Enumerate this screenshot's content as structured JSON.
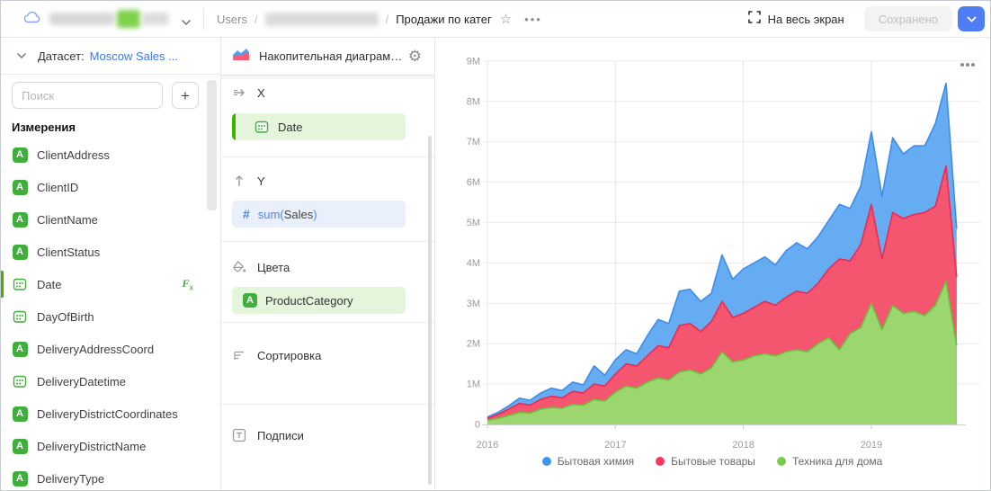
{
  "topbar": {
    "breadcrumb": {
      "root": "Users",
      "separator": "/",
      "current": "Продажи по катег"
    },
    "fullscreen_label": "На весь экран",
    "save_button_label": "Сохранено"
  },
  "sidebar": {
    "dataset_label": "Датасет:",
    "dataset_name": "Moscow Sales ...",
    "search_placeholder": "Поиск",
    "add_button_label": "+",
    "fields_section_title": "Измерения",
    "fields": [
      {
        "name": "ClientAddress",
        "type": "string"
      },
      {
        "name": "ClientID",
        "type": "string"
      },
      {
        "name": "ClientName",
        "type": "string"
      },
      {
        "name": "ClientStatus",
        "type": "string"
      },
      {
        "name": "Date",
        "type": "date",
        "formula": true,
        "active": true
      },
      {
        "name": "DayOfBirth",
        "type": "date"
      },
      {
        "name": "DeliveryAddressCoord",
        "type": "string"
      },
      {
        "name": "DeliveryDatetime",
        "type": "date"
      },
      {
        "name": "DeliveryDistrictCoordinates",
        "type": "string"
      },
      {
        "name": "DeliveryDistrictName",
        "type": "string"
      },
      {
        "name": "DeliveryType",
        "type": "string"
      }
    ]
  },
  "chart_panel_ui": {
    "chart_type_label": "Накопительная диаграм…",
    "sections": {
      "x_label": "X",
      "y_label": "Y",
      "colors_label": "Цвета",
      "sort_label": "Сортировка",
      "labels_label": "Подписи"
    },
    "x_field": "Date",
    "y_field": {
      "prefix": "sum(",
      "field": "Sales",
      "suffix": ")"
    },
    "color_field": "ProductCategory"
  },
  "chart_data": {
    "type": "area",
    "stacked": true,
    "x_start": "2016-01",
    "x_step": "1 month",
    "x_tick_labels": [
      "2016",
      "2017",
      "2018",
      "2019"
    ],
    "x_tick_month_indices": [
      0,
      12,
      24,
      36
    ],
    "ylim_millions": [
      0,
      9
    ],
    "y_tick_labels": [
      "0",
      "1M",
      "2M",
      "3M",
      "4M",
      "5M",
      "6M",
      "7M",
      "8M",
      "9M"
    ],
    "values_unit": "millions",
    "legend_position": "bottom",
    "stack_bottom_to_top": [
      "Техника для дома",
      "Бытовые товары",
      "Бытовая химия"
    ],
    "series": [
      {
        "name": "Бытовая химия",
        "fill": "#65ACF2",
        "line": "#3C8DE9",
        "dot": "#3E96F0",
        "values": [
          0.03,
          0.05,
          0.08,
          0.13,
          0.12,
          0.16,
          0.2,
          0.18,
          0.23,
          0.2,
          0.45,
          0.27,
          0.35,
          0.35,
          0.3,
          0.5,
          0.65,
          0.6,
          0.85,
          0.85,
          0.75,
          0.7,
          1.15,
          0.95,
          1.1,
          1.1,
          1.1,
          1.0,
          1.15,
          1.2,
          1.1,
          1.15,
          1.2,
          1.35,
          1.3,
          1.45,
          1.8,
          1.55,
          1.85,
          1.6,
          1.7,
          1.65,
          2.05,
          2.05,
          1.2
        ]
      },
      {
        "name": "Бытовые товары",
        "fill": "#F4566F",
        "line": "#EF2850",
        "dot": "#F4385E",
        "values": [
          0.05,
          0.1,
          0.16,
          0.22,
          0.2,
          0.24,
          0.28,
          0.26,
          0.32,
          0.3,
          0.38,
          0.37,
          0.45,
          0.55,
          0.55,
          0.65,
          0.8,
          0.8,
          1.15,
          1.15,
          1.05,
          1.15,
          1.25,
          1.1,
          1.15,
          1.2,
          1.3,
          1.25,
          1.35,
          1.45,
          1.45,
          1.5,
          1.7,
          2.25,
          1.8,
          2.05,
          2.45,
          1.75,
          2.3,
          2.35,
          2.4,
          2.55,
          2.45,
          2.85,
          1.7
        ]
      },
      {
        "name": "Техника для дома",
        "fill": "#9CD66F",
        "line": "#6ABF3A",
        "dot": "#7CCB4C",
        "values": [
          0.1,
          0.15,
          0.22,
          0.3,
          0.28,
          0.38,
          0.42,
          0.4,
          0.5,
          0.48,
          0.62,
          0.58,
          0.8,
          0.95,
          0.9,
          1.05,
          1.15,
          1.1,
          1.3,
          1.35,
          1.25,
          1.4,
          1.8,
          1.55,
          1.6,
          1.7,
          1.75,
          1.7,
          1.8,
          1.85,
          1.8,
          2.0,
          2.15,
          1.85,
          2.25,
          2.4,
          3.0,
          2.35,
          2.95,
          2.75,
          2.8,
          2.7,
          2.95,
          3.55,
          1.95
        ]
      }
    ]
  }
}
